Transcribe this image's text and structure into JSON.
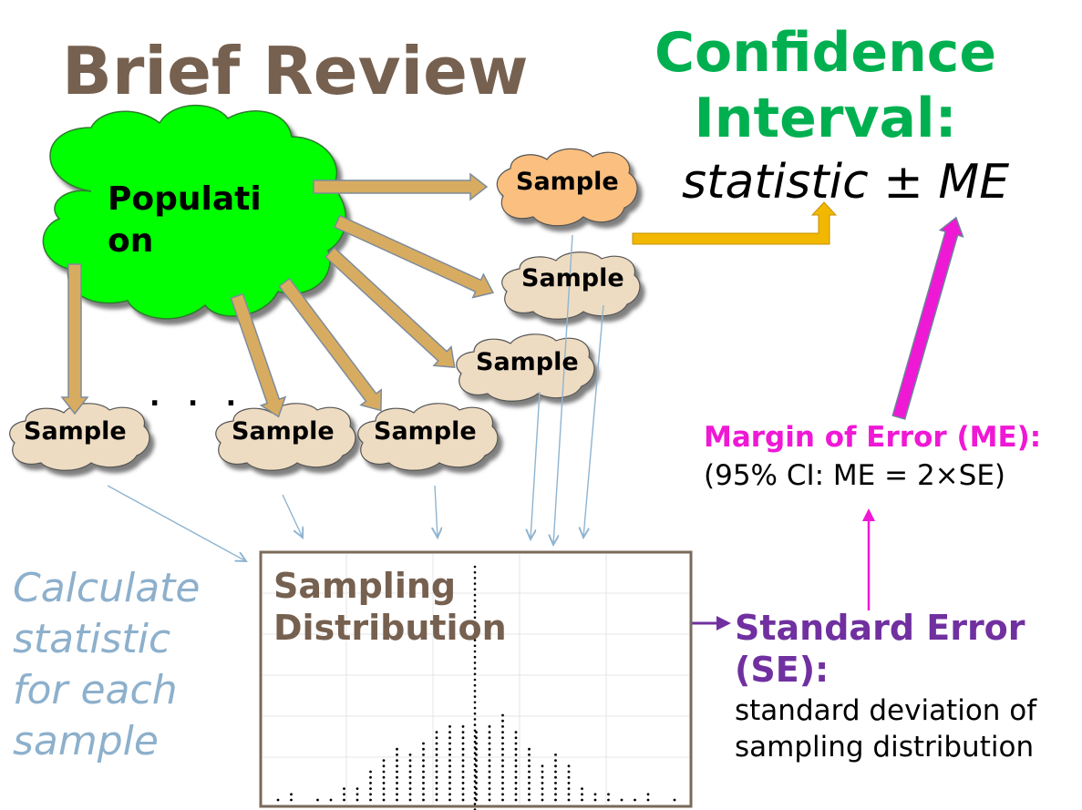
{
  "title": "Brief Review",
  "confidence_interval": {
    "heading_line1": "Confidence",
    "heading_line2": "Interval:",
    "formula": "statistic ± ME"
  },
  "population": {
    "label_line1": "Populati",
    "label_line2": "on"
  },
  "samples": [
    "Sample",
    "Sample",
    "Sample",
    "Sample",
    "Sample",
    "Sample"
  ],
  "ellipsis": ". . .",
  "calculate_text": {
    "line1": "Calculate",
    "line2": "statistic",
    "line3": "for each",
    "line4": "sample"
  },
  "sampling_distribution": {
    "line1": "Sampling",
    "line2": "Distribution"
  },
  "margin_of_error": {
    "title": "Margin of Error (ME):",
    "formula": "(95% CI: ME = 2×SE)"
  },
  "standard_error": {
    "title_line1": "Standard Error",
    "title_line2": "(SE):",
    "desc_line1": "standard deviation of",
    "desc_line2": "sampling distribution"
  },
  "colors": {
    "title": "#76604f",
    "ci": "#00b050",
    "population_cloud": "#00ff00",
    "sample_highlight": "#fbbf80",
    "sample_cloud": "#eedcc2",
    "arrow_tan": "#d8ac60",
    "arrow_gold": "#f2b800",
    "me": "#ef18d5",
    "se": "#7030a0",
    "calculate": "#8db0cc"
  },
  "dotplot_counts": [
    1,
    2,
    0,
    1,
    1,
    3,
    3,
    6,
    8,
    10,
    9,
    11,
    13,
    14,
    14,
    13,
    14,
    16,
    13,
    10,
    7,
    9,
    7,
    3,
    2,
    2,
    1,
    1,
    2,
    0,
    1
  ]
}
